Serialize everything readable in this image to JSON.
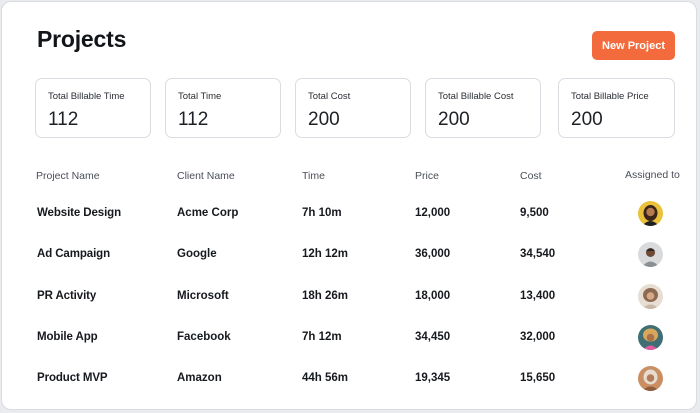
{
  "page": {
    "title": "Projects",
    "new_project_label": "New Project"
  },
  "stats": [
    {
      "label": "Total Billable Time",
      "value": "112"
    },
    {
      "label": "Total Time",
      "value": "112"
    },
    {
      "label": "Total Cost",
      "value": "200"
    },
    {
      "label": "Total Billable Cost",
      "value": "200"
    },
    {
      "label": "Total Billable Price",
      "value": "200"
    }
  ],
  "table": {
    "columns": [
      "Project Name",
      "Client Name",
      "Time",
      "Price",
      "Cost",
      "Assigned to"
    ],
    "rows": [
      {
        "project": "Website Design",
        "client": "Acme Corp",
        "time": "7h 10m",
        "price": "12,000",
        "cost": "9,500"
      },
      {
        "project": "Ad Campaign",
        "client": "Google",
        "time": "12h 12m",
        "price": "36,000",
        "cost": "34,540"
      },
      {
        "project": "PR Activity",
        "client": "Microsoft",
        "time": "18h 26m",
        "price": "18,000",
        "cost": "13,400"
      },
      {
        "project": "Mobile App",
        "client": "Facebook",
        "time": "7h 12m",
        "price": "34,450",
        "cost": "32,000"
      },
      {
        "project": "Product MVP",
        "client": "Amazon",
        "time": "44h 56m",
        "price": "19,345",
        "cost": "15,650"
      }
    ]
  },
  "colors": {
    "accent": "#f36a3c",
    "border": "#d9dce1",
    "text": "#16191d"
  }
}
